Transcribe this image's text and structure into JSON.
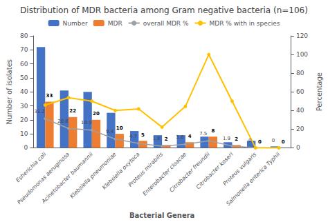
{
  "chart_data": {
    "type": "bar",
    "title": "Distribution of MDR bacteria among Gram negative bacteria (n=106)",
    "xlabel": "Bacterial Genera",
    "ylabel": "Number of isolates",
    "y2label": "Percentage",
    "categories": [
      "Esherichia coli",
      "Pseudomonas aeruginosa",
      "Acinetobacter baumannii",
      "Klebsiella pneumoniae",
      "Klebsiella oxytoca",
      "Proteus mirabilis",
      "Enterobacter cloacae",
      "Citrobacter freundii",
      "Citrobacter koseri",
      "Proteus vulgaris",
      "Salmonella enterica Typhii"
    ],
    "series": [
      {
        "name": "Number",
        "type": "bar",
        "color": "#4472C4",
        "values": [
          72,
          41,
          40,
          25,
          12,
          9,
          9,
          8,
          4,
          5,
          1
        ]
      },
      {
        "name": "MDR",
        "type": "bar",
        "color": "#ED7D31",
        "data_labels": true,
        "values": [
          33,
          22,
          20,
          10,
          5,
          2,
          4,
          8,
          2,
          0,
          0
        ]
      },
      {
        "name": "overall MDR %",
        "type": "line",
        "axis": "y2",
        "color": "#A0A0A0",
        "marker": "circle",
        "data_labels": true,
        "values": [
          31.2,
          20.8,
          18.9,
          9.4,
          4.7,
          1.8,
          3.8,
          7.5,
          1.9,
          0,
          0
        ]
      },
      {
        "name": "MDR % with in species",
        "type": "line",
        "axis": "y2",
        "color": "#FFC000",
        "marker": "circle",
        "values": [
          45.8,
          53.7,
          50.0,
          40.0,
          41.7,
          22.2,
          44.4,
          100.0,
          50.0,
          0,
          0
        ]
      }
    ],
    "ylim": [
      0,
      80
    ],
    "yticks": [
      0,
      10,
      20,
      30,
      40,
      50,
      60,
      70,
      80
    ],
    "y2lim": [
      0,
      120
    ],
    "y2ticks": [
      0,
      20,
      40,
      60,
      80,
      100,
      120
    ],
    "grid": false,
    "legend": "upper center"
  }
}
